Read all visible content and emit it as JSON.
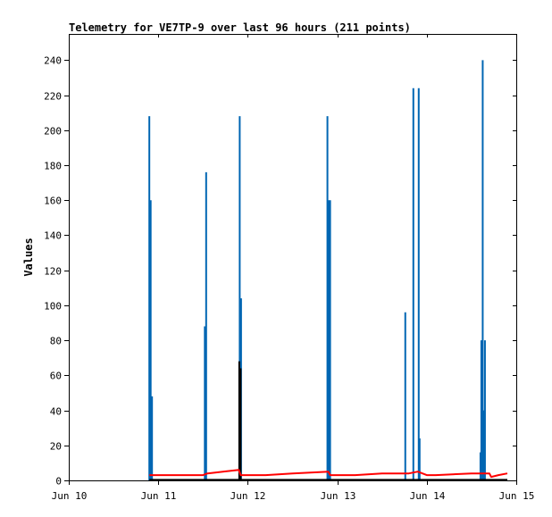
{
  "chart_data": {
    "type": "line",
    "title": "Telemetry for VE7TP-9 over last 96 hours (211 points)",
    "xlabel": "",
    "ylabel": "Values",
    "x_ticks": [
      "Jun 10",
      "Jun 11",
      "Jun 12",
      "Jun 13",
      "Jun 14",
      "Jun 15"
    ],
    "x_range_days": [
      10,
      15
    ],
    "ylim": [
      0,
      255
    ],
    "y_ticks": [
      0,
      20,
      40,
      60,
      80,
      100,
      120,
      140,
      160,
      180,
      200,
      220,
      240
    ],
    "grid": false,
    "legend": "none",
    "colors": {
      "spikes": "#0066b3",
      "trend": "#ff0000",
      "baseline": "#000000",
      "frame": "#000000",
      "background": "#ffffff"
    },
    "series": [
      {
        "kind": "spike",
        "color": "#0066b3",
        "points": [
          {
            "day": 10.9,
            "value": 208
          },
          {
            "day": 10.915,
            "value": 160
          },
          {
            "day": 10.93,
            "value": 48
          },
          {
            "day": 11.52,
            "value": 88
          },
          {
            "day": 11.535,
            "value": 176
          },
          {
            "day": 11.91,
            "value": 208
          },
          {
            "day": 11.925,
            "value": 104
          },
          {
            "day": 12.89,
            "value": 208
          },
          {
            "day": 12.905,
            "value": 160
          },
          {
            "day": 12.92,
            "value": 160
          },
          {
            "day": 13.76,
            "value": 96
          },
          {
            "day": 13.85,
            "value": 224
          },
          {
            "day": 13.91,
            "value": 224
          },
          {
            "day": 13.92,
            "value": 24
          },
          {
            "day": 14.6,
            "value": 16
          },
          {
            "day": 14.61,
            "value": 80
          },
          {
            "day": 14.625,
            "value": 240
          },
          {
            "day": 14.635,
            "value": 40
          },
          {
            "day": 14.65,
            "value": 80
          }
        ]
      },
      {
        "kind": "spike",
        "color": "#000000",
        "points": [
          {
            "day": 11.905,
            "value": 68
          },
          {
            "day": 11.92,
            "value": 64
          }
        ]
      },
      {
        "kind": "line",
        "color": "#ff0000",
        "points": [
          {
            "day": 10.9,
            "value": 3
          },
          {
            "day": 11.5,
            "value": 3
          },
          {
            "day": 11.55,
            "value": 4
          },
          {
            "day": 11.9,
            "value": 6
          },
          {
            "day": 11.92,
            "value": 3
          },
          {
            "day": 12.2,
            "value": 3
          },
          {
            "day": 12.5,
            "value": 4
          },
          {
            "day": 12.9,
            "value": 5
          },
          {
            "day": 12.92,
            "value": 3
          },
          {
            "day": 13.2,
            "value": 3
          },
          {
            "day": 13.5,
            "value": 4
          },
          {
            "day": 13.8,
            "value": 4
          },
          {
            "day": 13.9,
            "value": 5
          },
          {
            "day": 14.0,
            "value": 3
          },
          {
            "day": 14.1,
            "value": 3
          },
          {
            "day": 14.5,
            "value": 4
          },
          {
            "day": 14.7,
            "value": 4
          },
          {
            "day": 14.72,
            "value": 2
          },
          {
            "day": 14.8,
            "value": 3
          },
          {
            "day": 14.9,
            "value": 4
          }
        ]
      },
      {
        "kind": "line",
        "color": "#000000",
        "points": [
          {
            "day": 10.9,
            "value": 0.3
          },
          {
            "day": 14.9,
            "value": 0.3
          }
        ]
      }
    ]
  }
}
